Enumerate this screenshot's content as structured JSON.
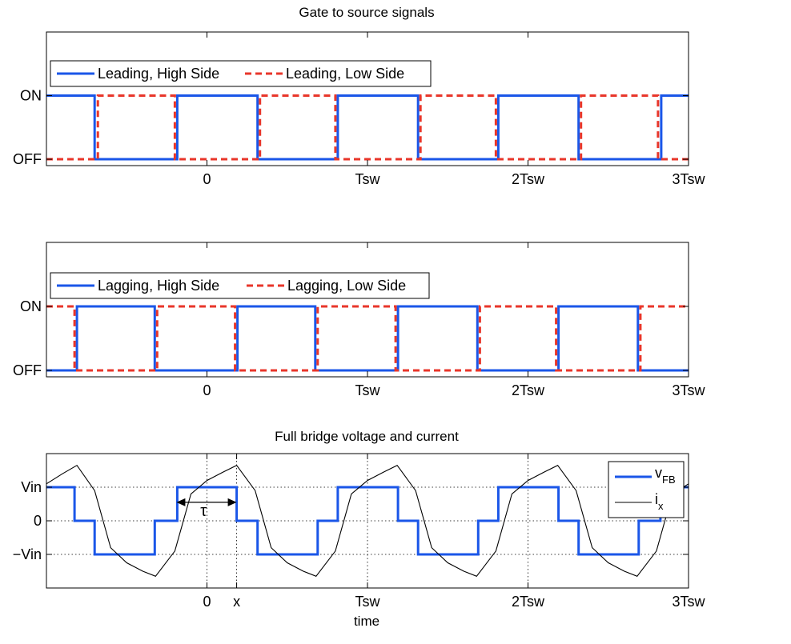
{
  "chart_data": [
    {
      "type": "line",
      "title": "Gate to source signals",
      "xlabel": "",
      "ylabel": "",
      "xlim": [
        -2,
        6
      ],
      "ylim": [
        -0.1,
        2
      ],
      "x_ticks": [
        {
          "value": 0,
          "label": "0"
        },
        {
          "value": 2,
          "label": "Tsw"
        },
        {
          "value": 4,
          "label": "2Tsw"
        },
        {
          "value": 6,
          "label": "3Tsw"
        }
      ],
      "y_ticks": [
        {
          "value": 0,
          "label": "OFF"
        },
        {
          "value": 1,
          "label": "ON"
        }
      ],
      "grid": false,
      "legend": "top-left",
      "series": [
        {
          "name": "Leading, High Side",
          "color": "#1a56e8",
          "dash": "solid",
          "step_x": [
            -2,
            -1.4,
            -1.4,
            -0.37,
            -0.37,
            0.63,
            0.63,
            1.63,
            1.63,
            2.63,
            2.63,
            3.63,
            3.63,
            4.63,
            4.63,
            5.66,
            5.66,
            6
          ],
          "step_y": [
            1,
            1,
            0,
            0,
            1,
            1,
            0,
            0,
            1,
            1,
            0,
            0,
            1,
            1,
            0,
            0,
            1,
            1
          ]
        },
        {
          "name": "Leading, Low Side",
          "color": "#e8362a",
          "dash": "dashed",
          "step_x": [
            -2,
            -1.36,
            -1.36,
            -0.4,
            -0.4,
            0.66,
            0.66,
            1.6,
            1.6,
            2.66,
            2.66,
            3.6,
            3.6,
            4.66,
            4.66,
            5.62,
            5.62,
            6
          ],
          "step_y": [
            0,
            0,
            1,
            1,
            0,
            0,
            1,
            1,
            0,
            0,
            1,
            1,
            0,
            0,
            1,
            1,
            0,
            0
          ]
        }
      ]
    },
    {
      "type": "line",
      "title": "",
      "xlabel": "",
      "ylabel": "",
      "xlim": [
        -2,
        6
      ],
      "ylim": [
        -0.1,
        2
      ],
      "x_ticks": [
        {
          "value": 0,
          "label": "0"
        },
        {
          "value": 2,
          "label": "Tsw"
        },
        {
          "value": 4,
          "label": "2Tsw"
        },
        {
          "value": 6,
          "label": "3Tsw"
        }
      ],
      "y_ticks": [
        {
          "value": 0,
          "label": "OFF"
        },
        {
          "value": 1,
          "label": "ON"
        }
      ],
      "grid": false,
      "legend": "top-left",
      "series": [
        {
          "name": "Lagging, High Side",
          "color": "#1a56e8",
          "dash": "solid",
          "step_x": [
            -2,
            -1.62,
            -1.62,
            -0.65,
            -0.65,
            0.38,
            0.38,
            1.35,
            1.35,
            2.38,
            2.38,
            3.37,
            3.37,
            4.38,
            4.38,
            5.37,
            5.37,
            6
          ],
          "step_y": [
            0,
            0,
            1,
            1,
            0,
            0,
            1,
            1,
            0,
            0,
            1,
            1,
            0,
            0,
            1,
            1,
            0,
            0
          ]
        },
        {
          "name": "Lagging, Low Side",
          "color": "#e8362a",
          "dash": "dashed",
          "step_x": [
            -2,
            -1.65,
            -1.65,
            -0.62,
            -0.62,
            0.35,
            0.35,
            1.38,
            1.38,
            2.35,
            2.35,
            3.4,
            3.4,
            4.35,
            4.35,
            5.4,
            5.4,
            6
          ],
          "step_y": [
            1,
            1,
            0,
            0,
            1,
            1,
            0,
            0,
            1,
            1,
            0,
            0,
            1,
            1,
            0,
            0,
            1,
            1
          ]
        }
      ]
    },
    {
      "type": "line",
      "title": "Full bridge voltage and current",
      "xlabel": "time",
      "ylabel": "",
      "xlim": [
        -2,
        6
      ],
      "ylim": [
        -2,
        2
      ],
      "x_ticks": [
        {
          "value": 0,
          "label": "0"
        },
        {
          "value": 0.37,
          "label": "x"
        },
        {
          "value": 2,
          "label": "Tsw"
        },
        {
          "value": 4,
          "label": "2Tsw"
        },
        {
          "value": 6,
          "label": "3Tsw"
        }
      ],
      "y_ticks": [
        {
          "value": 1,
          "label": "Vin"
        },
        {
          "value": 0,
          "label": "0"
        },
        {
          "value": -1,
          "label": "−Vin"
        }
      ],
      "grid": true,
      "legend": "top-right",
      "annotation": {
        "label": "τ",
        "x_from": -0.38,
        "x_to": 0.37,
        "y": 0.55
      },
      "series": [
        {
          "name": "v",
          "name_subscript": "FB",
          "color": "#1a56e8",
          "style": "thick",
          "step_x": [
            -2,
            -1.65,
            -1.65,
            -1.4,
            -1.4,
            -0.65,
            -0.65,
            -0.37,
            -0.37,
            0.37,
            0.37,
            0.63,
            0.63,
            1.38,
            1.38,
            1.63,
            1.63,
            2.38,
            2.38,
            2.63,
            2.63,
            3.38,
            3.38,
            3.63,
            3.63,
            4.38,
            4.38,
            4.63,
            4.63,
            5.38,
            5.38,
            5.65,
            5.65,
            6
          ],
          "step_y": [
            1,
            1,
            0,
            0,
            -1,
            -1,
            0,
            0,
            1,
            1,
            0,
            0,
            -1,
            -1,
            0,
            0,
            1,
            1,
            0,
            0,
            -1,
            -1,
            0,
            0,
            1,
            1,
            0,
            0,
            -1,
            -1,
            0,
            0,
            1,
            1
          ]
        },
        {
          "name": "i",
          "name_subscript": "x",
          "color": "#000000",
          "style": "thin",
          "x": [
            -2,
            -1.8,
            -1.62,
            -1.4,
            -1.2,
            -1.0,
            -0.8,
            -0.64,
            -0.4,
            -0.2,
            0.0,
            0.2,
            0.37,
            0.6,
            0.8,
            1.0,
            1.2,
            1.36,
            1.6,
            1.8,
            2.0,
            2.2,
            2.37,
            2.6,
            2.8,
            3.0,
            3.2,
            3.36,
            3.6,
            3.8,
            4.0,
            4.2,
            4.37,
            4.6,
            4.8,
            5.0,
            5.2,
            5.36,
            5.6,
            5.8,
            6.0
          ],
          "y": [
            1.1,
            1.4,
            1.65,
            0.9,
            -0.8,
            -1.25,
            -1.5,
            -1.65,
            -0.9,
            0.8,
            1.2,
            1.45,
            1.65,
            0.9,
            -0.8,
            -1.25,
            -1.5,
            -1.65,
            -0.9,
            0.8,
            1.2,
            1.45,
            1.65,
            0.9,
            -0.8,
            -1.25,
            -1.5,
            -1.65,
            -0.9,
            0.8,
            1.2,
            1.45,
            1.65,
            0.9,
            -0.8,
            -1.25,
            -1.5,
            -1.65,
            -0.9,
            0.8,
            1.1
          ]
        }
      ]
    }
  ]
}
